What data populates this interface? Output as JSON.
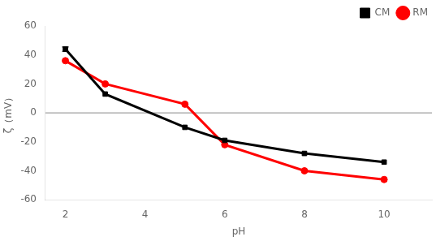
{
  "chart_data": {
    "type": "line",
    "x": [
      2,
      3,
      5,
      6,
      8,
      10
    ],
    "series": [
      {
        "name": "CM",
        "color": "#000000",
        "marker": "square",
        "values": [
          44,
          13,
          -10,
          -19,
          -28,
          -34
        ],
        "error": [
          1.5,
          0,
          0,
          0,
          0,
          0
        ]
      },
      {
        "name": "RM",
        "color": "#ff0000",
        "marker": "circle",
        "values": [
          36,
          20,
          6,
          -22,
          -40,
          -46
        ]
      }
    ],
    "xlabel": "pH",
    "ylabel": "ζ（mV）",
    "xlim": [
      1.5,
      11.2
    ],
    "xticks": [
      2,
      4,
      6,
      8,
      10
    ],
    "ylim": [
      -60,
      60
    ],
    "yticks": [
      -60,
      -40,
      -20,
      0,
      20,
      40,
      60
    ],
    "grid": false,
    "legend": "upper right",
    "hline": {
      "y": 0,
      "color": "#888888"
    }
  }
}
